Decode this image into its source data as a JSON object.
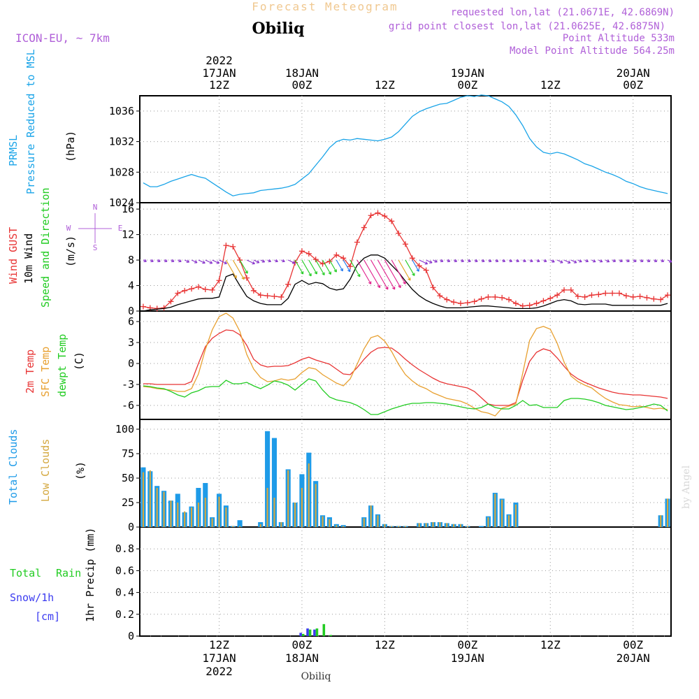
{
  "header": {
    "title": "Forecast Meteogram",
    "station": "Obiliq",
    "model": "ICON-EU, ~ 7km",
    "requested": "requested lon,lat (21.0671E, 42.6869N)",
    "gridpoint": "grid point closest lon,lat (21.0625E, 42.6875N)",
    "altitude": "Point Altitude 533m",
    "model_altitude": "Model Point Altitude 564.25m",
    "footer_station": "Obiliq",
    "watermark": "by Angel"
  },
  "time_axis": {
    "ticks": [
      {
        "hour": 12,
        "top": "12Z",
        "mid": "17JAN",
        "year": "2022"
      },
      {
        "hour": 24,
        "top": "00Z",
        "mid": "18JAN",
        "year": ""
      },
      {
        "hour": 36,
        "top": "12Z",
        "mid": "",
        "year": ""
      },
      {
        "hour": 48,
        "top": "00Z",
        "mid": "19JAN",
        "year": ""
      },
      {
        "hour": 60,
        "top": "12Z",
        "mid": "",
        "year": ""
      },
      {
        "hour": 72,
        "top": "00Z",
        "mid": "20JAN",
        "year": ""
      }
    ],
    "start_hour": 1,
    "end_hour": 77
  },
  "labels": {
    "pressure": [
      "PRMSL",
      "Pressure Reduced to MSL",
      "(hPa)"
    ],
    "wind": [
      "Wind GUST",
      "10m Wind",
      "Speed and Direction",
      "(m/s)"
    ],
    "compass": {
      "n": "N",
      "s": "S",
      "e": "E",
      "w": "W"
    },
    "temp": [
      "2m Temp",
      "SFC Temp",
      "dewpt Temp",
      "(C)"
    ],
    "clouds": [
      "Total Clouds",
      "Low Clouds",
      "(%)"
    ],
    "precip": [
      "Total",
      "Rain",
      "Snow/1h",
      "[cm]",
      "1hr Precip (mm)"
    ]
  },
  "colors": {
    "pressure": "#1aa4e8",
    "gust": "#e83434",
    "wind": "#000000",
    "temp2m": "#e83434",
    "sfc": "#e8a030",
    "dew": "#22cc22",
    "total_cloud": "#1e9be8",
    "low_cloud": "#d4a840",
    "rain": "#22cc22",
    "snow": "#3b3bf0",
    "model": "#b060d8",
    "title": "#f0c890"
  },
  "chart_data": [
    {
      "type": "line",
      "name": "pressure",
      "ylim": [
        1024,
        1038
      ],
      "yticks": [
        1024,
        1028,
        1032,
        1036
      ],
      "x": [
        1,
        2,
        3,
        4,
        5,
        6,
        7,
        8,
        9,
        10,
        11,
        12,
        13,
        14,
        15,
        16,
        17,
        18,
        19,
        20,
        21,
        22,
        23,
        24,
        25,
        26,
        27,
        28,
        29,
        30,
        31,
        32,
        33,
        34,
        35,
        36,
        37,
        38,
        39,
        40,
        41,
        42,
        43,
        44,
        45,
        46,
        47,
        48,
        49,
        50,
        51,
        52,
        53,
        54,
        55,
        56,
        57,
        58,
        59,
        60,
        61,
        62,
        63,
        64,
        65,
        66,
        67,
        68,
        69,
        70,
        71,
        72,
        73,
        74,
        75,
        76,
        77
      ],
      "series": [
        {
          "values": [
            1026.6,
            1026.1,
            1026.1,
            1026.4,
            1026.8,
            1027.1,
            1027.4,
            1027.7,
            1027.4,
            1027.2,
            1026.6,
            1026.0,
            1025.4,
            1024.9,
            1025.1,
            1025.2,
            1025.3,
            1025.6,
            1025.7,
            1025.8,
            1025.9,
            1026.1,
            1026.4,
            1027.1,
            1027.8,
            1028.9,
            1030.0,
            1031.2,
            1032.0,
            1032.3,
            1032.2,
            1032.4,
            1032.3,
            1032.2,
            1032.1,
            1032.3,
            1032.6,
            1033.3,
            1034.3,
            1035.3,
            1035.9,
            1036.3,
            1036.6,
            1036.9,
            1037.0,
            1037.4,
            1037.8,
            1038.0,
            1037.9,
            1038.1,
            1038.0,
            1037.6,
            1037.2,
            1036.6,
            1035.5,
            1034.1,
            1032.4,
            1031.3,
            1030.6,
            1030.4,
            1030.6,
            1030.4,
            1030.0,
            1029.6,
            1029.1,
            1028.8,
            1028.4,
            1028.0,
            1027.7,
            1027.3,
            1026.8,
            1026.5,
            1026.1,
            1025.8,
            1025.6,
            1025.4,
            1025.2
          ]
        }
      ]
    },
    {
      "type": "line",
      "name": "wind",
      "ylim": [
        0,
        17
      ],
      "yticks": [
        0,
        4,
        8,
        12,
        16
      ],
      "x": [
        1,
        2,
        3,
        4,
        5,
        6,
        7,
        8,
        9,
        10,
        11,
        12,
        13,
        14,
        15,
        16,
        17,
        18,
        19,
        20,
        21,
        22,
        23,
        24,
        25,
        26,
        27,
        28,
        29,
        30,
        31,
        32,
        33,
        34,
        35,
        36,
        37,
        38,
        39,
        40,
        41,
        42,
        43,
        44,
        45,
        46,
        47,
        48,
        49,
        50,
        51,
        52,
        53,
        54,
        55,
        56,
        57,
        58,
        59,
        60,
        61,
        62,
        63,
        64,
        65,
        66,
        67,
        68,
        69,
        70,
        71,
        72,
        73,
        74,
        75,
        76,
        77
      ],
      "series": [
        {
          "key": "gust",
          "values": [
            0.7,
            0.5,
            0.4,
            0.5,
            1.5,
            2.8,
            3.2,
            3.5,
            3.8,
            3.4,
            3.3,
            4.8,
            10.3,
            10.1,
            8.0,
            5.2,
            3.2,
            2.5,
            2.4,
            2.3,
            2.2,
            4.2,
            7.6,
            9.4,
            9.0,
            8.1,
            7.4,
            7.8,
            8.8,
            8.3,
            7.0,
            10.8,
            13.1,
            15.0,
            15.4,
            14.9,
            14.1,
            12.2,
            10.5,
            8.3,
            7.1,
            6.4,
            3.7,
            2.4,
            1.8,
            1.4,
            1.2,
            1.3,
            1.5,
            1.9,
            2.2,
            2.2,
            2.1,
            1.8,
            1.2,
            0.8,
            0.9,
            1.2,
            1.6,
            2.0,
            2.5,
            3.3,
            3.3,
            2.3,
            2.2,
            2.5,
            2.6,
            2.8,
            2.8,
            2.8,
            2.4,
            2.2,
            2.3,
            2.1,
            1.9,
            1.8,
            2.5
          ]
        },
        {
          "key": "wind",
          "values": [
            0.0,
            0.2,
            0.3,
            0.4,
            0.6,
            1.0,
            1.3,
            1.6,
            1.9,
            2.0,
            2.0,
            2.2,
            5.4,
            5.8,
            4.0,
            2.3,
            1.6,
            1.2,
            1.0,
            1.0,
            1.0,
            2.0,
            4.2,
            4.8,
            4.2,
            4.5,
            4.3,
            3.6,
            3.3,
            3.5,
            5.0,
            7.2,
            8.3,
            8.8,
            8.8,
            8.3,
            7.2,
            6.1,
            4.7,
            3.4,
            2.4,
            1.7,
            1.2,
            0.8,
            0.5,
            0.5,
            0.5,
            0.6,
            0.7,
            0.8,
            0.8,
            0.7,
            0.6,
            0.5,
            0.4,
            0.4,
            0.4,
            0.5,
            0.8,
            1.2,
            1.6,
            1.8,
            1.6,
            1.1,
            1.0,
            1.1,
            1.1,
            1.1,
            0.9,
            0.9,
            0.9,
            0.9,
            0.9,
            0.9,
            0.9,
            0.9,
            1.2
          ]
        }
      ]
    },
    {
      "type": "line",
      "name": "temperature",
      "ylim": [
        -8,
        7.5
      ],
      "yticks": [
        -6,
        -3,
        0,
        3,
        6
      ],
      "x": [
        1,
        2,
        3,
        4,
        5,
        6,
        7,
        8,
        9,
        10,
        11,
        12,
        13,
        14,
        15,
        16,
        17,
        18,
        19,
        20,
        21,
        22,
        23,
        24,
        25,
        26,
        27,
        28,
        29,
        30,
        31,
        32,
        33,
        34,
        35,
        36,
        37,
        38,
        39,
        40,
        41,
        42,
        43,
        44,
        45,
        46,
        47,
        48,
        49,
        50,
        51,
        52,
        53,
        54,
        55,
        56,
        57,
        58,
        59,
        60,
        61,
        62,
        63,
        64,
        65,
        66,
        67,
        68,
        69,
        70,
        71,
        72,
        73,
        74,
        75,
        76,
        77
      ],
      "series": [
        {
          "key": "temp2m",
          "values": [
            -2.9,
            -2.9,
            -3.0,
            -3.0,
            -3.0,
            -3.0,
            -3.0,
            -2.6,
            0.0,
            2.4,
            3.6,
            4.3,
            4.8,
            4.7,
            4.1,
            2.6,
            0.6,
            -0.2,
            -0.5,
            -0.4,
            -0.4,
            -0.3,
            0.1,
            0.6,
            0.9,
            0.5,
            0.2,
            -0.1,
            -0.8,
            -1.5,
            -1.6,
            -0.6,
            0.6,
            1.6,
            2.2,
            2.3,
            2.2,
            1.5,
            0.6,
            -0.2,
            -0.9,
            -1.5,
            -2.1,
            -2.6,
            -2.9,
            -3.1,
            -3.3,
            -3.5,
            -4.0,
            -4.9,
            -5.8,
            -6.0,
            -6.0,
            -6.0,
            -5.6,
            -2.4,
            0.3,
            1.6,
            2.1,
            1.8,
            0.8,
            -0.4,
            -1.5,
            -2.2,
            -2.7,
            -3.1,
            -3.5,
            -3.8,
            -4.1,
            -4.3,
            -4.4,
            -4.5,
            -4.5,
            -4.6,
            -4.7,
            -4.8,
            -5.0
          ]
        },
        {
          "key": "sfc",
          "values": [
            -3.3,
            -3.4,
            -3.6,
            -3.7,
            -3.8,
            -4.0,
            -4.0,
            -3.6,
            -1.5,
            2.0,
            4.8,
            6.7,
            7.2,
            6.5,
            4.6,
            1.3,
            -0.8,
            -2.0,
            -2.6,
            -2.5,
            -2.2,
            -2.4,
            -2.2,
            -1.3,
            -0.6,
            -0.8,
            -1.6,
            -2.2,
            -2.8,
            -3.2,
            -2.2,
            -0.1,
            2.1,
            3.7,
            4.0,
            3.2,
            1.7,
            -0.1,
            -1.6,
            -2.5,
            -3.2,
            -3.6,
            -4.2,
            -4.6,
            -5.0,
            -5.2,
            -5.4,
            -5.8,
            -6.4,
            -6.9,
            -7.1,
            -7.5,
            -6.4,
            -6.1,
            -5.8,
            -1.4,
            3.3,
            5.0,
            5.3,
            4.9,
            2.9,
            0.2,
            -1.8,
            -2.6,
            -3.1,
            -3.5,
            -4.3,
            -5.0,
            -5.5,
            -5.9,
            -6.0,
            -6.2,
            -6.1,
            -6.3,
            -6.5,
            -6.4,
            -6.6
          ]
        },
        {
          "key": "dew",
          "values": [
            -3.2,
            -3.3,
            -3.5,
            -3.6,
            -4.0,
            -4.5,
            -4.8,
            -4.2,
            -3.9,
            -3.4,
            -3.3,
            -3.3,
            -2.4,
            -2.9,
            -2.9,
            -2.7,
            -3.2,
            -3.6,
            -3.1,
            -2.5,
            -2.7,
            -3.1,
            -3.8,
            -3.0,
            -2.2,
            -2.5,
            -3.8,
            -4.8,
            -5.2,
            -5.4,
            -5.6,
            -6.0,
            -6.6,
            -7.3,
            -7.3,
            -6.9,
            -6.5,
            -6.2,
            -5.9,
            -5.7,
            -5.7,
            -5.6,
            -5.6,
            -5.7,
            -5.8,
            -6.0,
            -6.2,
            -6.4,
            -6.5,
            -6.3,
            -5.8,
            -6.3,
            -6.5,
            -6.5,
            -6.0,
            -5.3,
            -6.0,
            -5.9,
            -6.3,
            -6.3,
            -6.3,
            -5.3,
            -5.0,
            -5.0,
            -5.1,
            -5.3,
            -5.6,
            -6.0,
            -6.2,
            -6.4,
            -6.6,
            -6.5,
            -6.3,
            -6.1,
            -5.8,
            -6.0,
            -6.8
          ]
        }
      ]
    },
    {
      "type": "bar",
      "name": "clouds",
      "ylim": [
        0,
        110
      ],
      "yticks": [
        0,
        25,
        50,
        75,
        100
      ],
      "x": [
        1,
        2,
        3,
        4,
        5,
        6,
        7,
        8,
        9,
        10,
        11,
        12,
        13,
        14,
        15,
        16,
        17,
        18,
        19,
        20,
        21,
        22,
        23,
        24,
        25,
        26,
        27,
        28,
        29,
        30,
        31,
        32,
        33,
        34,
        35,
        36,
        37,
        38,
        39,
        40,
        41,
        42,
        43,
        44,
        45,
        46,
        47,
        48,
        49,
        50,
        51,
        52,
        53,
        54,
        55,
        56,
        57,
        58,
        59,
        60,
        61,
        62,
        63,
        64,
        65,
        66,
        67,
        68,
        69,
        70,
        71,
        72,
        73,
        74,
        75,
        76,
        77
      ],
      "series": [
        {
          "key": "total",
          "values": [
            61,
            57,
            42,
            37,
            27,
            34,
            15,
            21,
            40,
            45,
            10,
            34,
            22,
            1,
            7,
            0,
            0,
            5,
            98,
            91,
            5,
            59,
            25,
            54,
            76,
            47,
            12,
            10,
            3,
            2,
            0,
            0,
            10,
            22,
            13,
            3,
            1,
            1,
            1,
            0,
            4,
            4,
            5,
            5,
            4,
            3,
            3,
            1,
            0,
            1,
            11,
            35,
            29,
            13,
            25,
            0,
            0,
            0,
            0,
            0,
            0,
            0,
            0,
            0,
            0,
            0,
            0,
            0,
            0,
            0,
            0,
            0,
            0,
            0,
            0,
            12,
            29
          ]
        },
        {
          "key": "low",
          "values": [
            56,
            58,
            40,
            36,
            27,
            25,
            16,
            20,
            25,
            30,
            9,
            31,
            20,
            1,
            1,
            0,
            0,
            3,
            40,
            30,
            5,
            58,
            25,
            40,
            65,
            44,
            11,
            8,
            2,
            1,
            0,
            0,
            9,
            22,
            12,
            3,
            1,
            1,
            1,
            0,
            4,
            4,
            5,
            5,
            4,
            3,
            3,
            1,
            0,
            0,
            10,
            34,
            28,
            12,
            23,
            0,
            0,
            0,
            0,
            0,
            0,
            0,
            0,
            0,
            0,
            0,
            0,
            0,
            0,
            0,
            0,
            0,
            0,
            0,
            0,
            12,
            29
          ]
        }
      ]
    },
    {
      "type": "bar",
      "name": "precipitation",
      "ylim": [
        0,
        1.0
      ],
      "yticks": [
        0,
        0.2,
        0.4,
        0.6,
        0.8
      ],
      "x": [
        24,
        25,
        26,
        27,
        28
      ],
      "series": [
        {
          "key": "rain",
          "values": [
            0.02,
            0.06,
            0.07,
            0.11,
            0.01
          ]
        },
        {
          "key": "snow",
          "values": [
            0.03,
            0.07,
            0.06,
            0.0,
            0.0
          ]
        }
      ]
    }
  ]
}
